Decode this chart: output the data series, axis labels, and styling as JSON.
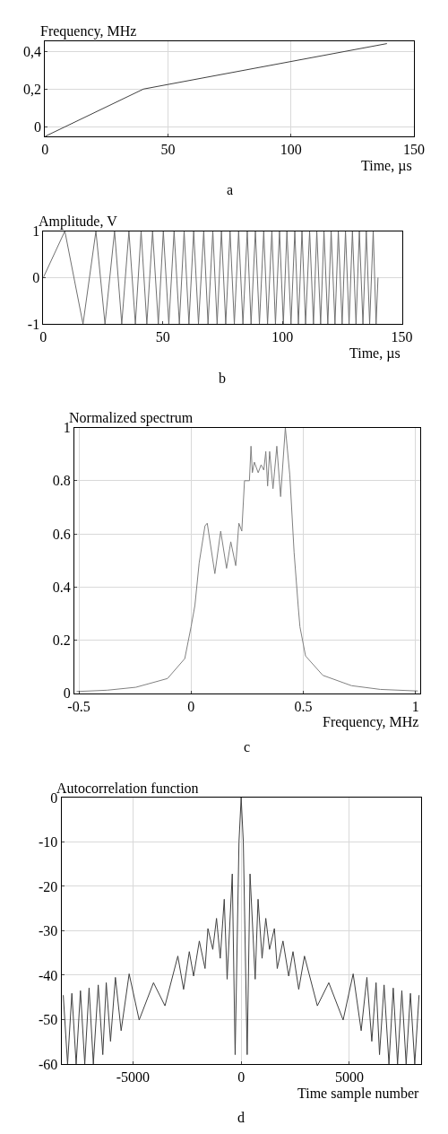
{
  "chart_data": [
    {
      "type": "line",
      "ylabel": "Frequency, MHz",
      "xlabel": "Time, µs",
      "annotations": [
        "a"
      ],
      "grid": true,
      "xlim": [
        0,
        150
      ],
      "xticks": [
        0,
        50,
        100,
        150
      ],
      "ylim": [
        -0.05,
        0.45
      ],
      "yticks": [
        {
          "value": 0,
          "label": "0"
        },
        {
          "value": 0.2,
          "label": "0,2"
        },
        {
          "value": 0.4,
          "label": "0,4"
        }
      ],
      "series": [
        {
          "color": "#404040",
          "x": [
            0,
            40,
            139
          ],
          "values": [
            -0.05,
            0.2,
            0.44
          ]
        }
      ]
    },
    {
      "type": "line",
      "ylabel": "Amplitude, V",
      "xlabel": "Time, µs",
      "annotations": [
        "b"
      ],
      "grid": "y",
      "xlim": [
        0,
        150
      ],
      "xticks": [
        0,
        50,
        100,
        150
      ],
      "ylim": [
        -1,
        1
      ],
      "yticks": [
        -1,
        0,
        1
      ],
      "series": [
        {
          "color": "#707070",
          "x": [
            0,
            9.0,
            16.6,
            22.0,
            25.8,
            29.8,
            32.8,
            35.8,
            38.5,
            40.9,
            43.3,
            45.7,
            48.1,
            50.2,
            52.5,
            54.7,
            56.9,
            58.9,
            60.9,
            62.9,
            64.9,
            67.1,
            68.9,
            70.9,
            72.7,
            74.5,
            76.3,
            78.1,
            79.9,
            81.7,
            83.5,
            85.3,
            86.9,
            88.7,
            90.4,
            92.2,
            93.8,
            95.6,
            97.1,
            98.8,
            100.4,
            101.9,
            103.6,
            105.2,
            106.7,
            108.2,
            109.7,
            111.4,
            113.0,
            114.4,
            116.0,
            117.4,
            119.0,
            120.4,
            122.0,
            123.4,
            125.0,
            126.4,
            127.9,
            129.3,
            130.8,
            132.2,
            133.7,
            135.1,
            136.5,
            138.0,
            139.2,
            140.0
          ],
          "values": [
            0,
            1,
            -1,
            1,
            -1,
            1,
            -1,
            1,
            -1,
            1,
            -1,
            1,
            -1,
            1,
            -1,
            1,
            -1,
            1,
            -1,
            1,
            -1,
            1,
            -1,
            1,
            -1,
            1,
            -1,
            1,
            -1,
            1,
            -1,
            1,
            -1,
            1,
            -1,
            1,
            -1,
            1,
            -1,
            1,
            -1,
            1,
            -1,
            1,
            -1,
            1,
            -1,
            1,
            -1,
            1,
            -1,
            1,
            -1,
            1,
            -1,
            1,
            -1,
            1,
            -1,
            1,
            -1,
            1,
            -1,
            1,
            -1,
            1,
            -1,
            0
          ]
        }
      ]
    },
    {
      "type": "line",
      "ylabel": "Normalized spectrum",
      "xlabel": "Frequency, MHz",
      "annotations": [
        "c"
      ],
      "grid": true,
      "xlim": [
        -0.52,
        1.02
      ],
      "xticks": [
        -0.5,
        0,
        0.5,
        1
      ],
      "ylim": [
        0,
        1
      ],
      "yticks": [
        0,
        0.2,
        0.4,
        0.6,
        0.8,
        1
      ],
      "series": [
        {
          "color": "#808080",
          "x": [
            -0.51,
            -0.374,
            -0.246,
            -0.105,
            -0.028,
            0,
            0.017,
            0.036,
            0.062,
            0.072,
            0.106,
            0.132,
            0.158,
            0.177,
            0.199,
            0.213,
            0.226,
            0.238,
            0.26,
            0.267,
            0.273,
            0.282,
            0.299,
            0.312,
            0.324,
            0.333,
            0.341,
            0.35,
            0.365,
            0.382,
            0.399,
            0.42,
            0.44,
            0.459,
            0.478,
            0.485,
            0.51,
            0.587,
            0.715,
            0.843,
            1.01
          ],
          "values": [
            0.006,
            0.011,
            0.022,
            0.055,
            0.13,
            0.25,
            0.33,
            0.49,
            0.63,
            0.64,
            0.45,
            0.61,
            0.47,
            0.57,
            0.48,
            0.64,
            0.61,
            0.8,
            0.8,
            0.93,
            0.83,
            0.87,
            0.83,
            0.86,
            0.84,
            0.91,
            0.78,
            0.91,
            0.77,
            0.93,
            0.74,
            1.0,
            0.82,
            0.53,
            0.32,
            0.25,
            0.14,
            0.067,
            0.028,
            0.014,
            0.008
          ]
        }
      ]
    },
    {
      "type": "line",
      "ylabel": "Autocorrelation function",
      "xlabel": "Time sample number",
      "annotations": [
        "d"
      ],
      "grid": true,
      "xlim": [
        -8300,
        8300
      ],
      "xticks": [
        -5000,
        0,
        5000
      ],
      "ylim": [
        -60,
        0
      ],
      "yticks": [
        -60,
        -50,
        -40,
        -30,
        -20,
        -10,
        0
      ],
      "series": [
        {
          "color": "#404040",
          "x": [
            -8216,
            -8017,
            -7818,
            -7620,
            -7421,
            -7223,
            -7024,
            -6826,
            -6601,
            -6390,
            -6231,
            -6033,
            -5808,
            -5543,
            -5173,
            -4710,
            -4048,
            -3519,
            -2924,
            -2659,
            -2395,
            -2196,
            -1932,
            -1667,
            -1535,
            -1310,
            -1138,
            -966,
            -781,
            -648,
            -410,
            -278,
            -100,
            0,
            100,
            278,
            410,
            648,
            781,
            966,
            1138,
            1310,
            1535,
            1667,
            1932,
            2196,
            2395,
            2659,
            2924,
            3519,
            4048,
            4710,
            5173,
            5543,
            5808,
            6033,
            6231,
            6390,
            6601,
            6826,
            7024,
            7223,
            7421,
            7620,
            7818,
            8017,
            8216
          ],
          "values": [
            -44.5,
            -60,
            -44.1,
            -60,
            -43.5,
            -60,
            -42.9,
            -60,
            -42.2,
            -57.9,
            -41.7,
            -54.9,
            -40.5,
            -52.5,
            -39.7,
            -50.1,
            -41.7,
            -46.9,
            -35.7,
            -43.2,
            -34.7,
            -40.2,
            -32.3,
            -38.5,
            -29.5,
            -34.2,
            -27.2,
            -36.2,
            -22.9,
            -40.9,
            -17.2,
            -57.9,
            -10,
            0,
            -10,
            -57.9,
            -17.2,
            -40.9,
            -22.9,
            -36.2,
            -27.2,
            -34.2,
            -29.5,
            -38.5,
            -32.3,
            -40.2,
            -34.7,
            -43.2,
            -35.7,
            -46.9,
            -41.7,
            -50.1,
            -39.7,
            -52.5,
            -40.5,
            -54.9,
            -41.7,
            -57.9,
            -42.2,
            -60,
            -42.9,
            -60,
            -43.5,
            -60,
            -44.1,
            -60,
            -44.5
          ]
        }
      ]
    }
  ]
}
